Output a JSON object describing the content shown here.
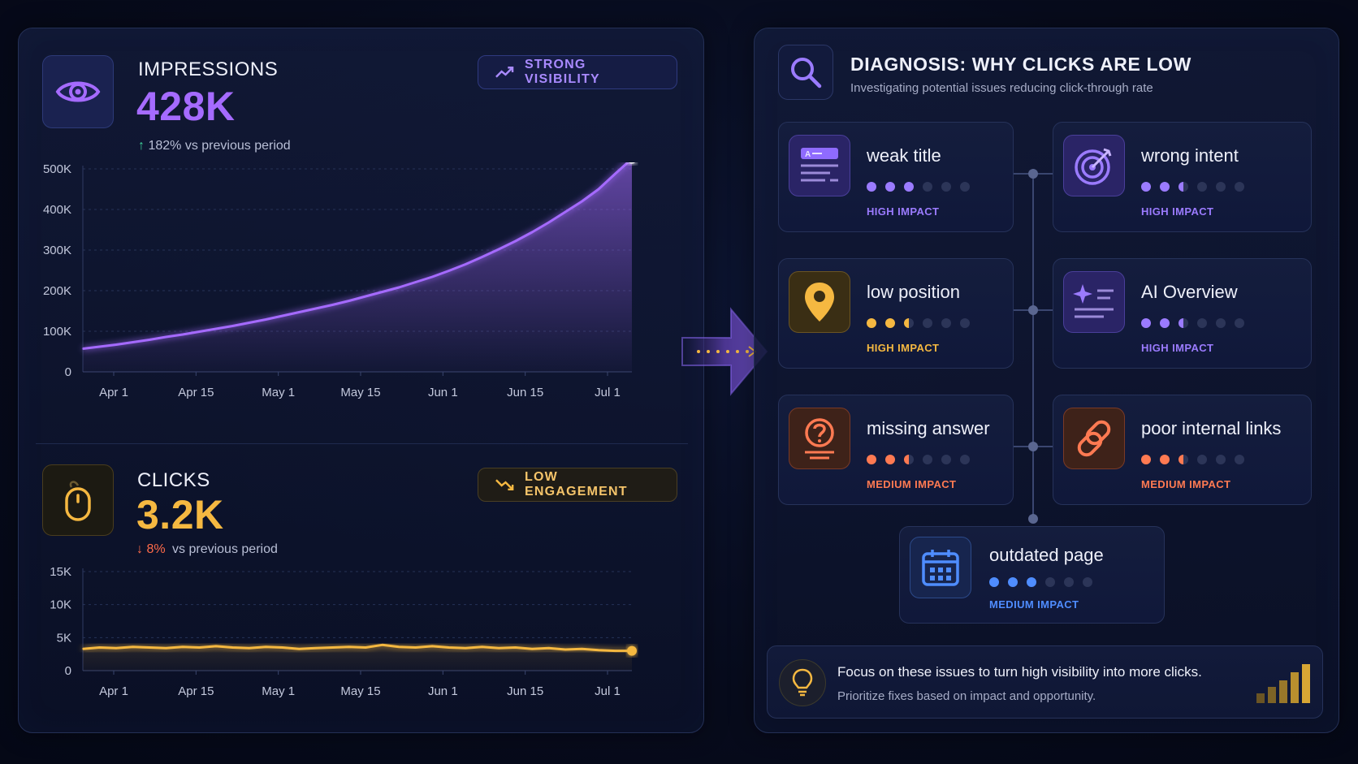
{
  "colors": {
    "impressions": "#a56bff",
    "clicks": "#f5b841",
    "up": "#3fd39a",
    "down": "#ff6b4a",
    "high": "#9b7bff",
    "high_orange": "#f5b841",
    "medium": "#ff7a52",
    "medium_blue": "#4f8dff"
  },
  "impressions": {
    "title": "IMPRESSIONS",
    "value": "428K",
    "delta_arrow": "↑",
    "delta_text": "182% vs previous period",
    "badge": "STRONG VISIBILITY",
    "badge_icon": "trend-up-icon",
    "icon": "eye-icon"
  },
  "clicks": {
    "title": "CLICKS",
    "value": "3.2K",
    "delta_arrow": "↓",
    "delta_pct": "8%",
    "delta_text": "vs previous period",
    "badge": "LOW ENGAGEMENT",
    "badge_icon": "trend-down-icon",
    "icon": "mouse-icon"
  },
  "chart_data": [
    {
      "type": "area",
      "series": [
        {
          "values": [
            57000,
            62000,
            67000,
            73000,
            79000,
            86000,
            92000,
            99000,
            106000,
            113000,
            121000,
            129000,
            138000,
            147000,
            156000,
            165000,
            175000,
            186000,
            197000,
            208000,
            221000,
            234000,
            249000,
            265000,
            283000,
            302000,
            322000,
            344000,
            368000,
            394000,
            420000,
            450000,
            488000,
            525000
          ]
        }
      ],
      "x_range": [
        "Apr 1",
        "Jul 5"
      ],
      "x_ticks": [
        "Apr 1",
        "Apr 15",
        "May 1",
        "May 15",
        "Jun 1",
        "Jun 15",
        "Jul 1"
      ],
      "y_ticks": [
        "0",
        "100K",
        "200K",
        "300K",
        "400K",
        "500K"
      ],
      "ylim": [
        0,
        500000
      ],
      "grid": true
    },
    {
      "type": "line",
      "series": [
        {
          "values": [
            3300,
            3500,
            3400,
            3600,
            3500,
            3400,
            3600,
            3500,
            3700,
            3500,
            3400,
            3600,
            3500,
            3300,
            3400,
            3500,
            3600,
            3500,
            3900,
            3600,
            3500,
            3700,
            3500,
            3400,
            3600,
            3400,
            3500,
            3300,
            3400,
            3200,
            3300,
            3100,
            3000,
            3000
          ]
        }
      ],
      "x_range": [
        "Apr 1",
        "Jul 5"
      ],
      "x_ticks": [
        "Apr 1",
        "Apr 15",
        "May 1",
        "May 15",
        "Jun 1",
        "Jun 15",
        "Jul 1"
      ],
      "y_ticks": [
        "0",
        "5K",
        "10K",
        "15K"
      ],
      "ylim": [
        0,
        15000
      ],
      "grid": true
    }
  ],
  "diagnosis": {
    "title": "DIAGNOSIS: WHY CLICKS ARE LOW",
    "subtitle": "Investigating potential issues reducing click-through rate",
    "icon": "search-icon"
  },
  "issues": [
    {
      "label": "weak title",
      "impact": "HIGH IMPACT",
      "level": 3,
      "icon": "title-card-icon",
      "color": "#9b7bff"
    },
    {
      "label": "wrong intent",
      "impact": "HIGH IMPACT",
      "level": 2.5,
      "icon": "target-icon",
      "color": "#9b7bff"
    },
    {
      "label": "low position",
      "impact": "HIGH IMPACT",
      "level": 2.5,
      "icon": "map-pin-icon",
      "color": "#f5b841"
    },
    {
      "label": "AI Overview",
      "impact": "HIGH IMPACT",
      "level": 2.5,
      "icon": "sparkle-list-icon",
      "color": "#9b7bff"
    },
    {
      "label": "missing answer",
      "impact": "MEDIUM IMPACT",
      "level": 2.5,
      "icon": "question-icon",
      "color": "#ff7a52"
    },
    {
      "label": "poor internal links",
      "impact": "MEDIUM IMPACT",
      "level": 2.5,
      "icon": "link-icon",
      "color": "#ff7a52"
    },
    {
      "label": "outdated page",
      "impact": "MEDIUM IMPACT",
      "level": 3,
      "icon": "calendar-icon",
      "color": "#4f8dff"
    }
  ],
  "footer": {
    "headline": "Focus on these issues to turn high visibility into more clicks.",
    "subtext": "Prioritize fixes based on impact and opportunity.",
    "icon": "lightbulb-icon"
  }
}
